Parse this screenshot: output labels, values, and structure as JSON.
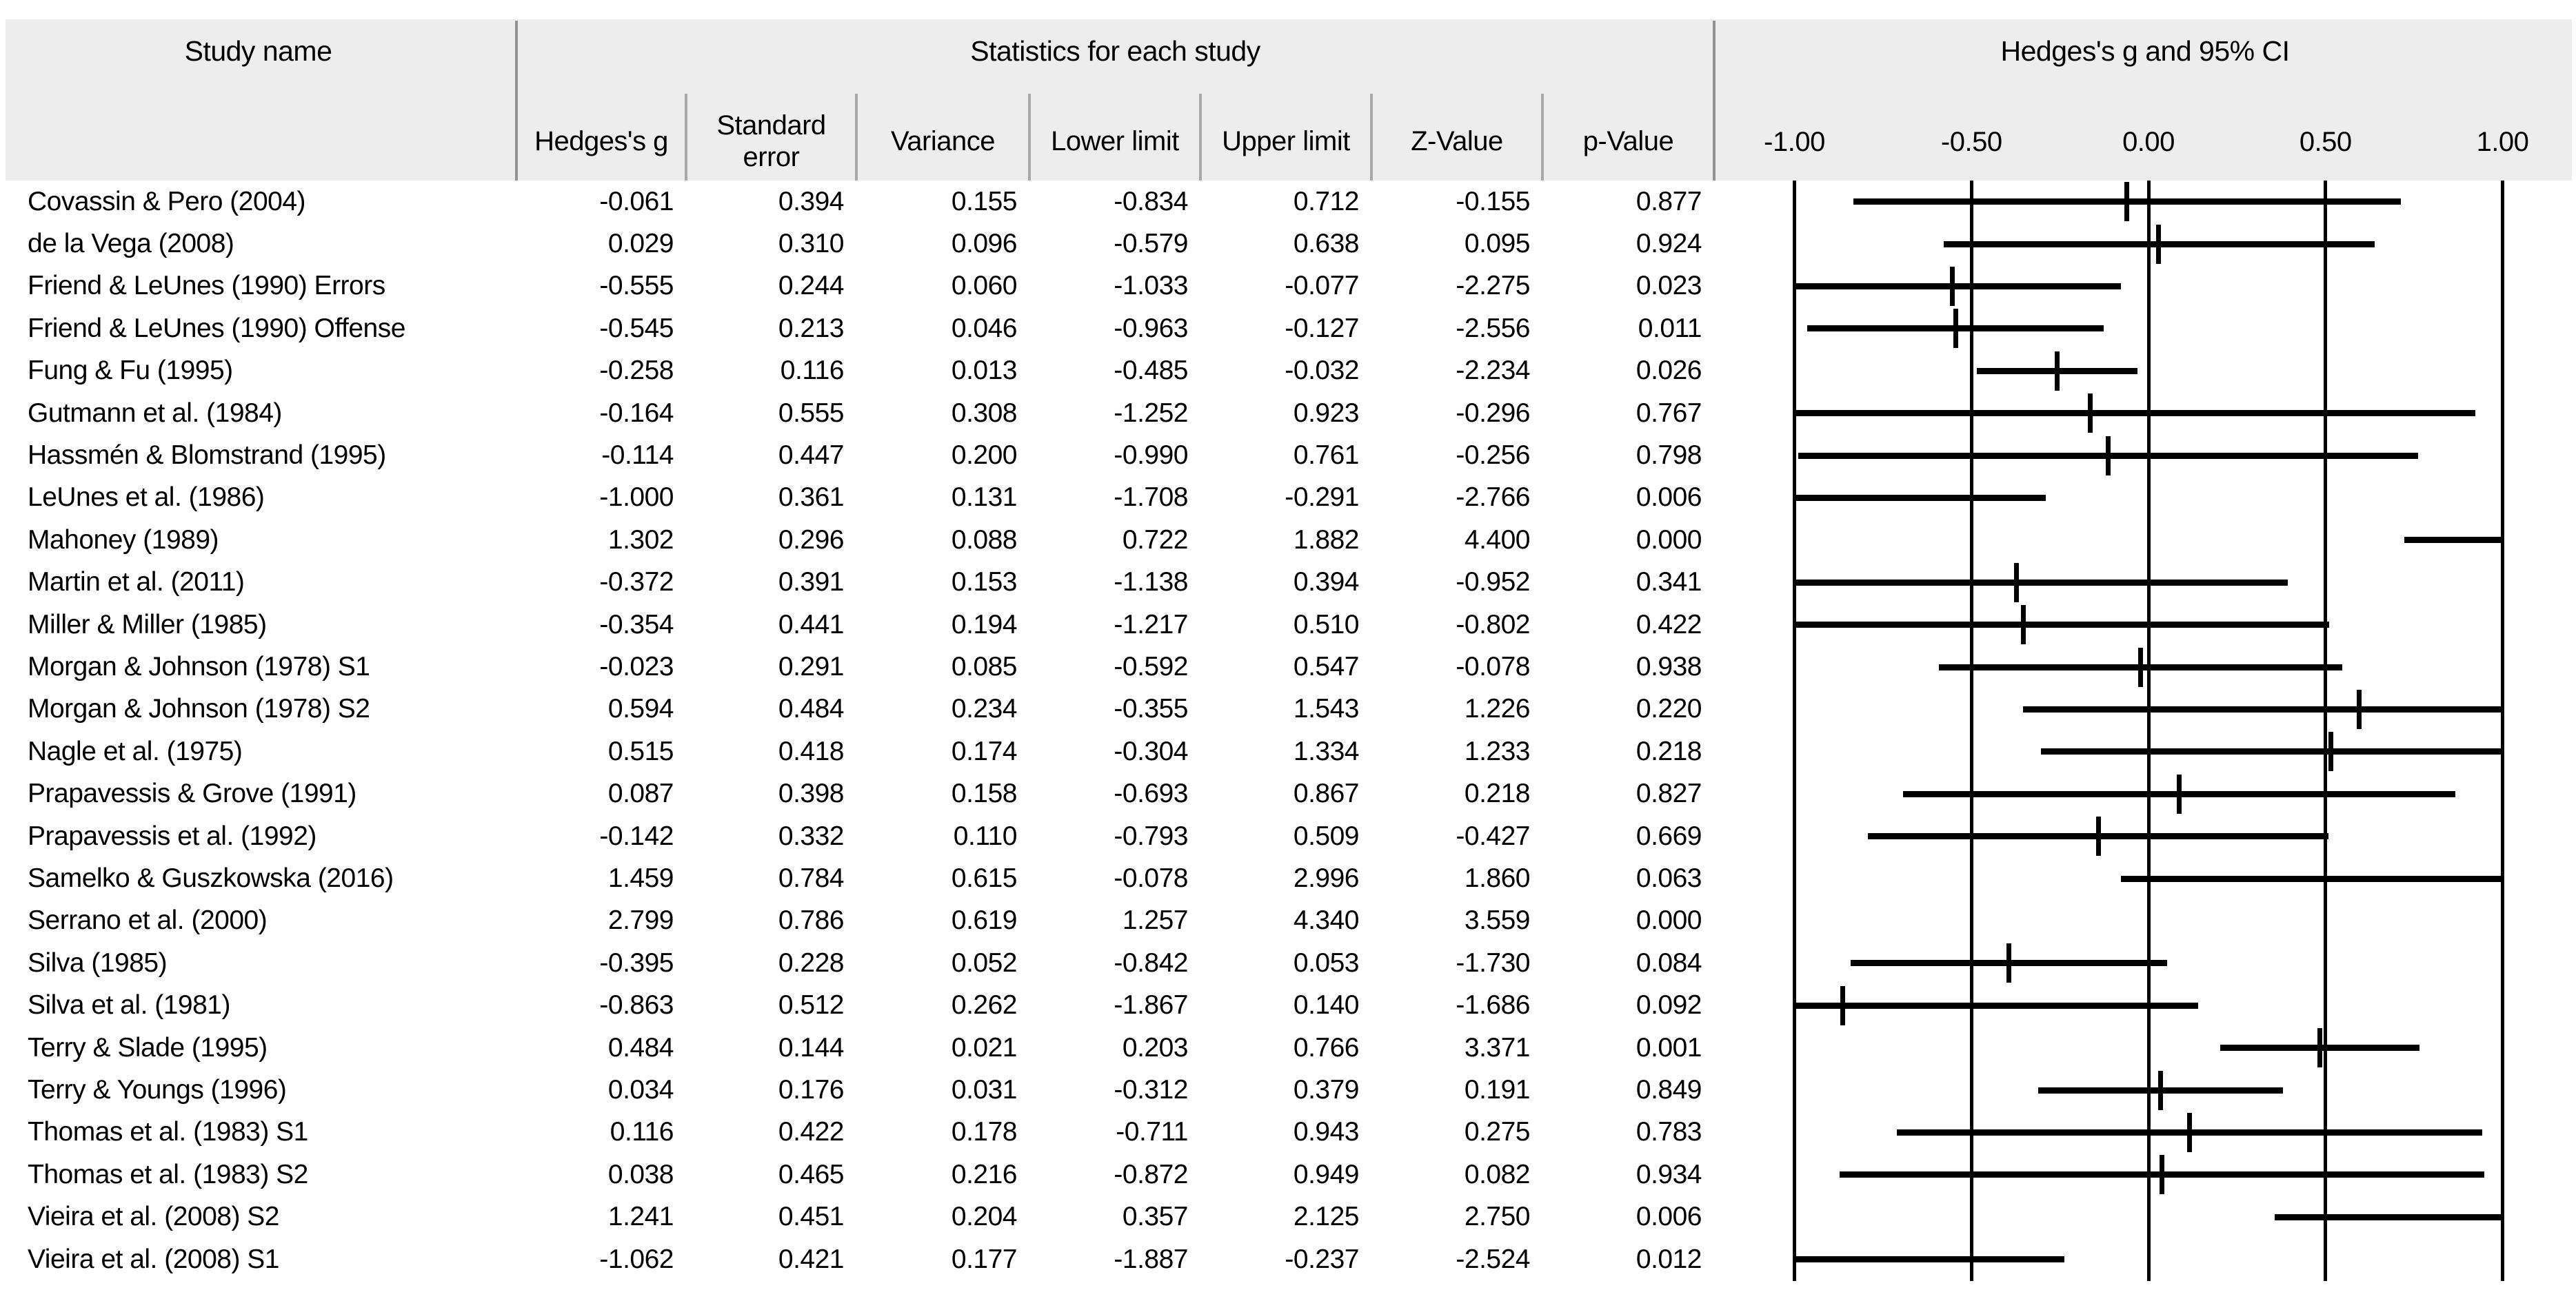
{
  "header": {
    "study_col": "Study name",
    "stats_section": "Statistics for each study",
    "plot_section": "Hedges's g and 95% CI",
    "columns": [
      "Hedges's g",
      "Standard\nerror",
      "Variance",
      "Lower limit",
      "Upper limit",
      "Z-Value",
      "p-Value"
    ]
  },
  "axis": {
    "ticks": [
      "-1.00",
      "-0.50",
      "0.00",
      "0.50",
      "1.00"
    ]
  },
  "table": {
    "rows": [
      {
        "study": "Covassin & Pero (2004)",
        "cells": [
          "-0.061",
          "0.394",
          "0.155",
          "-0.834",
          "0.712",
          "-0.155",
          "0.877"
        ]
      },
      {
        "study": "de la Vega (2008)",
        "cells": [
          "0.029",
          "0.310",
          "0.096",
          "-0.579",
          "0.638",
          "0.095",
          "0.924"
        ]
      },
      {
        "study": "Friend & LeUnes (1990) Errors",
        "cells": [
          "-0.555",
          "0.244",
          "0.060",
          "-1.033",
          "-0.077",
          "-2.275",
          "0.023"
        ]
      },
      {
        "study": "Friend & LeUnes (1990) Offense",
        "cells": [
          "-0.545",
          "0.213",
          "0.046",
          "-0.963",
          "-0.127",
          "-2.556",
          "0.011"
        ]
      },
      {
        "study": "Fung & Fu (1995)",
        "cells": [
          "-0.258",
          "0.116",
          "0.013",
          "-0.485",
          "-0.032",
          "-2.234",
          "0.026"
        ]
      },
      {
        "study": "Gutmann et al. (1984)",
        "cells": [
          "-0.164",
          "0.555",
          "0.308",
          "-1.252",
          "0.923",
          "-0.296",
          "0.767"
        ]
      },
      {
        "study": "Hassmén & Blomstrand (1995)",
        "cells": [
          "-0.114",
          "0.447",
          "0.200",
          "-0.990",
          "0.761",
          "-0.256",
          "0.798"
        ]
      },
      {
        "study": "LeUnes et al. (1986)",
        "cells": [
          "-1.000",
          "0.361",
          "0.131",
          "-1.708",
          "-0.291",
          "-2.766",
          "0.006"
        ]
      },
      {
        "study": "Mahoney (1989)",
        "cells": [
          "1.302",
          "0.296",
          "0.088",
          "0.722",
          "1.882",
          "4.400",
          "0.000"
        ]
      },
      {
        "study": "Martin et al. (2011)",
        "cells": [
          "-0.372",
          "0.391",
          "0.153",
          "-1.138",
          "0.394",
          "-0.952",
          "0.341"
        ]
      },
      {
        "study": "Miller & Miller (1985)",
        "cells": [
          "-0.354",
          "0.441",
          "0.194",
          "-1.217",
          "0.510",
          "-0.802",
          "0.422"
        ]
      },
      {
        "study": "Morgan & Johnson (1978) S1",
        "cells": [
          "-0.023",
          "0.291",
          "0.085",
          "-0.592",
          "0.547",
          "-0.078",
          "0.938"
        ]
      },
      {
        "study": "Morgan & Johnson (1978) S2",
        "cells": [
          "0.594",
          "0.484",
          "0.234",
          "-0.355",
          "1.543",
          "1.226",
          "0.220"
        ]
      },
      {
        "study": "Nagle et al. (1975)",
        "cells": [
          "0.515",
          "0.418",
          "0.174",
          "-0.304",
          "1.334",
          "1.233",
          "0.218"
        ]
      },
      {
        "study": "Prapavessis & Grove (1991)",
        "cells": [
          "0.087",
          "0.398",
          "0.158",
          "-0.693",
          "0.867",
          "0.218",
          "0.827"
        ]
      },
      {
        "study": "Prapavessis et al. (1992)",
        "cells": [
          "-0.142",
          "0.332",
          "0.110",
          "-0.793",
          "0.509",
          "-0.427",
          "0.669"
        ]
      },
      {
        "study": "Samelko & Guszkowska (2016)",
        "cells": [
          "1.459",
          "0.784",
          "0.615",
          "-0.078",
          "2.996",
          "1.860",
          "0.063"
        ]
      },
      {
        "study": "Serrano et al. (2000)",
        "cells": [
          "2.799",
          "0.786",
          "0.619",
          "1.257",
          "4.340",
          "3.559",
          "0.000"
        ]
      },
      {
        "study": "Silva (1985)",
        "cells": [
          "-0.395",
          "0.228",
          "0.052",
          "-0.842",
          "0.053",
          "-1.730",
          "0.084"
        ]
      },
      {
        "study": "Silva et al. (1981)",
        "cells": [
          "-0.863",
          "0.512",
          "0.262",
          "-1.867",
          "0.140",
          "-1.686",
          "0.092"
        ]
      },
      {
        "study": "Terry & Slade (1995)",
        "cells": [
          "0.484",
          "0.144",
          "0.021",
          "0.203",
          "0.766",
          "3.371",
          "0.001"
        ]
      },
      {
        "study": "Terry & Youngs (1996)",
        "cells": [
          "0.034",
          "0.176",
          "0.031",
          "-0.312",
          "0.379",
          "0.191",
          "0.849"
        ]
      },
      {
        "study": "Thomas et al. (1983) S1",
        "cells": [
          "0.116",
          "0.422",
          "0.178",
          "-0.711",
          "0.943",
          "0.275",
          "0.783"
        ]
      },
      {
        "study": "Thomas et al. (1983) S2",
        "cells": [
          "0.038",
          "0.465",
          "0.216",
          "-0.872",
          "0.949",
          "0.082",
          "0.934"
        ]
      },
      {
        "study": "Vieira et al. (2008) S2",
        "cells": [
          "1.241",
          "0.451",
          "0.204",
          "0.357",
          "2.125",
          "2.750",
          "0.006"
        ]
      },
      {
        "study": "Vieira et al. (2008) S1",
        "cells": [
          "-1.062",
          "0.421",
          "0.177",
          "-1.887",
          "-0.237",
          "-2.524",
          "0.012"
        ]
      }
    ]
  },
  "chart_data": {
    "type": "scatter",
    "subtype": "forest-plot",
    "title": "Hedges's g and 95% CI",
    "xlabel": "Hedges's g",
    "xlim": [
      -1.0,
      1.0
    ],
    "xticks": [
      -1.0,
      -0.5,
      0.0,
      0.5,
      1.0
    ],
    "grid": "vertical-lines-at-ticks",
    "ci_clipped_to_xlim": true,
    "studies": [
      {
        "name": "Covassin & Pero (2004)",
        "g": -0.061,
        "se": 0.394,
        "variance": 0.155,
        "lower": -0.834,
        "upper": 0.712,
        "z": -0.155,
        "p": 0.877
      },
      {
        "name": "de la Vega (2008)",
        "g": 0.029,
        "se": 0.31,
        "variance": 0.096,
        "lower": -0.579,
        "upper": 0.638,
        "z": 0.095,
        "p": 0.924
      },
      {
        "name": "Friend & LeUnes (1990) Errors",
        "g": -0.555,
        "se": 0.244,
        "variance": 0.06,
        "lower": -1.033,
        "upper": -0.077,
        "z": -2.275,
        "p": 0.023
      },
      {
        "name": "Friend & LeUnes (1990) Offense",
        "g": -0.545,
        "se": 0.213,
        "variance": 0.046,
        "lower": -0.963,
        "upper": -0.127,
        "z": -2.556,
        "p": 0.011
      },
      {
        "name": "Fung & Fu (1995)",
        "g": -0.258,
        "se": 0.116,
        "variance": 0.013,
        "lower": -0.485,
        "upper": -0.032,
        "z": -2.234,
        "p": 0.026
      },
      {
        "name": "Gutmann et al. (1984)",
        "g": -0.164,
        "se": 0.555,
        "variance": 0.308,
        "lower": -1.252,
        "upper": 0.923,
        "z": -0.296,
        "p": 0.767
      },
      {
        "name": "Hassmén & Blomstrand (1995)",
        "g": -0.114,
        "se": 0.447,
        "variance": 0.2,
        "lower": -0.99,
        "upper": 0.761,
        "z": -0.256,
        "p": 0.798
      },
      {
        "name": "LeUnes et al. (1986)",
        "g": -1.0,
        "se": 0.361,
        "variance": 0.131,
        "lower": -1.708,
        "upper": -0.291,
        "z": -2.766,
        "p": 0.006
      },
      {
        "name": "Mahoney (1989)",
        "g": 1.302,
        "se": 0.296,
        "variance": 0.088,
        "lower": 0.722,
        "upper": 1.882,
        "z": 4.4,
        "p": 0.0
      },
      {
        "name": "Martin et al. (2011)",
        "g": -0.372,
        "se": 0.391,
        "variance": 0.153,
        "lower": -1.138,
        "upper": 0.394,
        "z": -0.952,
        "p": 0.341
      },
      {
        "name": "Miller & Miller (1985)",
        "g": -0.354,
        "se": 0.441,
        "variance": 0.194,
        "lower": -1.217,
        "upper": 0.51,
        "z": -0.802,
        "p": 0.422
      },
      {
        "name": "Morgan & Johnson (1978) S1",
        "g": -0.023,
        "se": 0.291,
        "variance": 0.085,
        "lower": -0.592,
        "upper": 0.547,
        "z": -0.078,
        "p": 0.938
      },
      {
        "name": "Morgan & Johnson (1978) S2",
        "g": 0.594,
        "se": 0.484,
        "variance": 0.234,
        "lower": -0.355,
        "upper": 1.543,
        "z": 1.226,
        "p": 0.22
      },
      {
        "name": "Nagle et al. (1975)",
        "g": 0.515,
        "se": 0.418,
        "variance": 0.174,
        "lower": -0.304,
        "upper": 1.334,
        "z": 1.233,
        "p": 0.218
      },
      {
        "name": "Prapavessis & Grove (1991)",
        "g": 0.087,
        "se": 0.398,
        "variance": 0.158,
        "lower": -0.693,
        "upper": 0.867,
        "z": 0.218,
        "p": 0.827
      },
      {
        "name": "Prapavessis et al. (1992)",
        "g": -0.142,
        "se": 0.332,
        "variance": 0.11,
        "lower": -0.793,
        "upper": 0.509,
        "z": -0.427,
        "p": 0.669
      },
      {
        "name": "Samelko & Guszkowska (2016)",
        "g": 1.459,
        "se": 0.784,
        "variance": 0.615,
        "lower": -0.078,
        "upper": 2.996,
        "z": 1.86,
        "p": 0.063
      },
      {
        "name": "Serrano et al. (2000)",
        "g": 2.799,
        "se": 0.786,
        "variance": 0.619,
        "lower": 1.257,
        "upper": 4.34,
        "z": 3.559,
        "p": 0.0
      },
      {
        "name": "Silva (1985)",
        "g": -0.395,
        "se": 0.228,
        "variance": 0.052,
        "lower": -0.842,
        "upper": 0.053,
        "z": -1.73,
        "p": 0.084
      },
      {
        "name": "Silva et al. (1981)",
        "g": -0.863,
        "se": 0.512,
        "variance": 0.262,
        "lower": -1.867,
        "upper": 0.14,
        "z": -1.686,
        "p": 0.092
      },
      {
        "name": "Terry & Slade (1995)",
        "g": 0.484,
        "se": 0.144,
        "variance": 0.021,
        "lower": 0.203,
        "upper": 0.766,
        "z": 3.371,
        "p": 0.001
      },
      {
        "name": "Terry & Youngs (1996)",
        "g": 0.034,
        "se": 0.176,
        "variance": 0.031,
        "lower": -0.312,
        "upper": 0.379,
        "z": 0.191,
        "p": 0.849
      },
      {
        "name": "Thomas et al. (1983) S1",
        "g": 0.116,
        "se": 0.422,
        "variance": 0.178,
        "lower": -0.711,
        "upper": 0.943,
        "z": 0.275,
        "p": 0.783
      },
      {
        "name": "Thomas et al. (1983) S2",
        "g": 0.038,
        "se": 0.465,
        "variance": 0.216,
        "lower": -0.872,
        "upper": 0.949,
        "z": 0.082,
        "p": 0.934
      },
      {
        "name": "Vieira et al. (2008) S2",
        "g": 1.241,
        "se": 0.451,
        "variance": 0.204,
        "lower": 0.357,
        "upper": 2.125,
        "z": 2.75,
        "p": 0.006
      },
      {
        "name": "Vieira et al. (2008) S1",
        "g": -1.062,
        "se": 0.421,
        "variance": 0.177,
        "lower": -1.887,
        "upper": -0.237,
        "z": -2.524,
        "p": 0.012
      }
    ]
  }
}
